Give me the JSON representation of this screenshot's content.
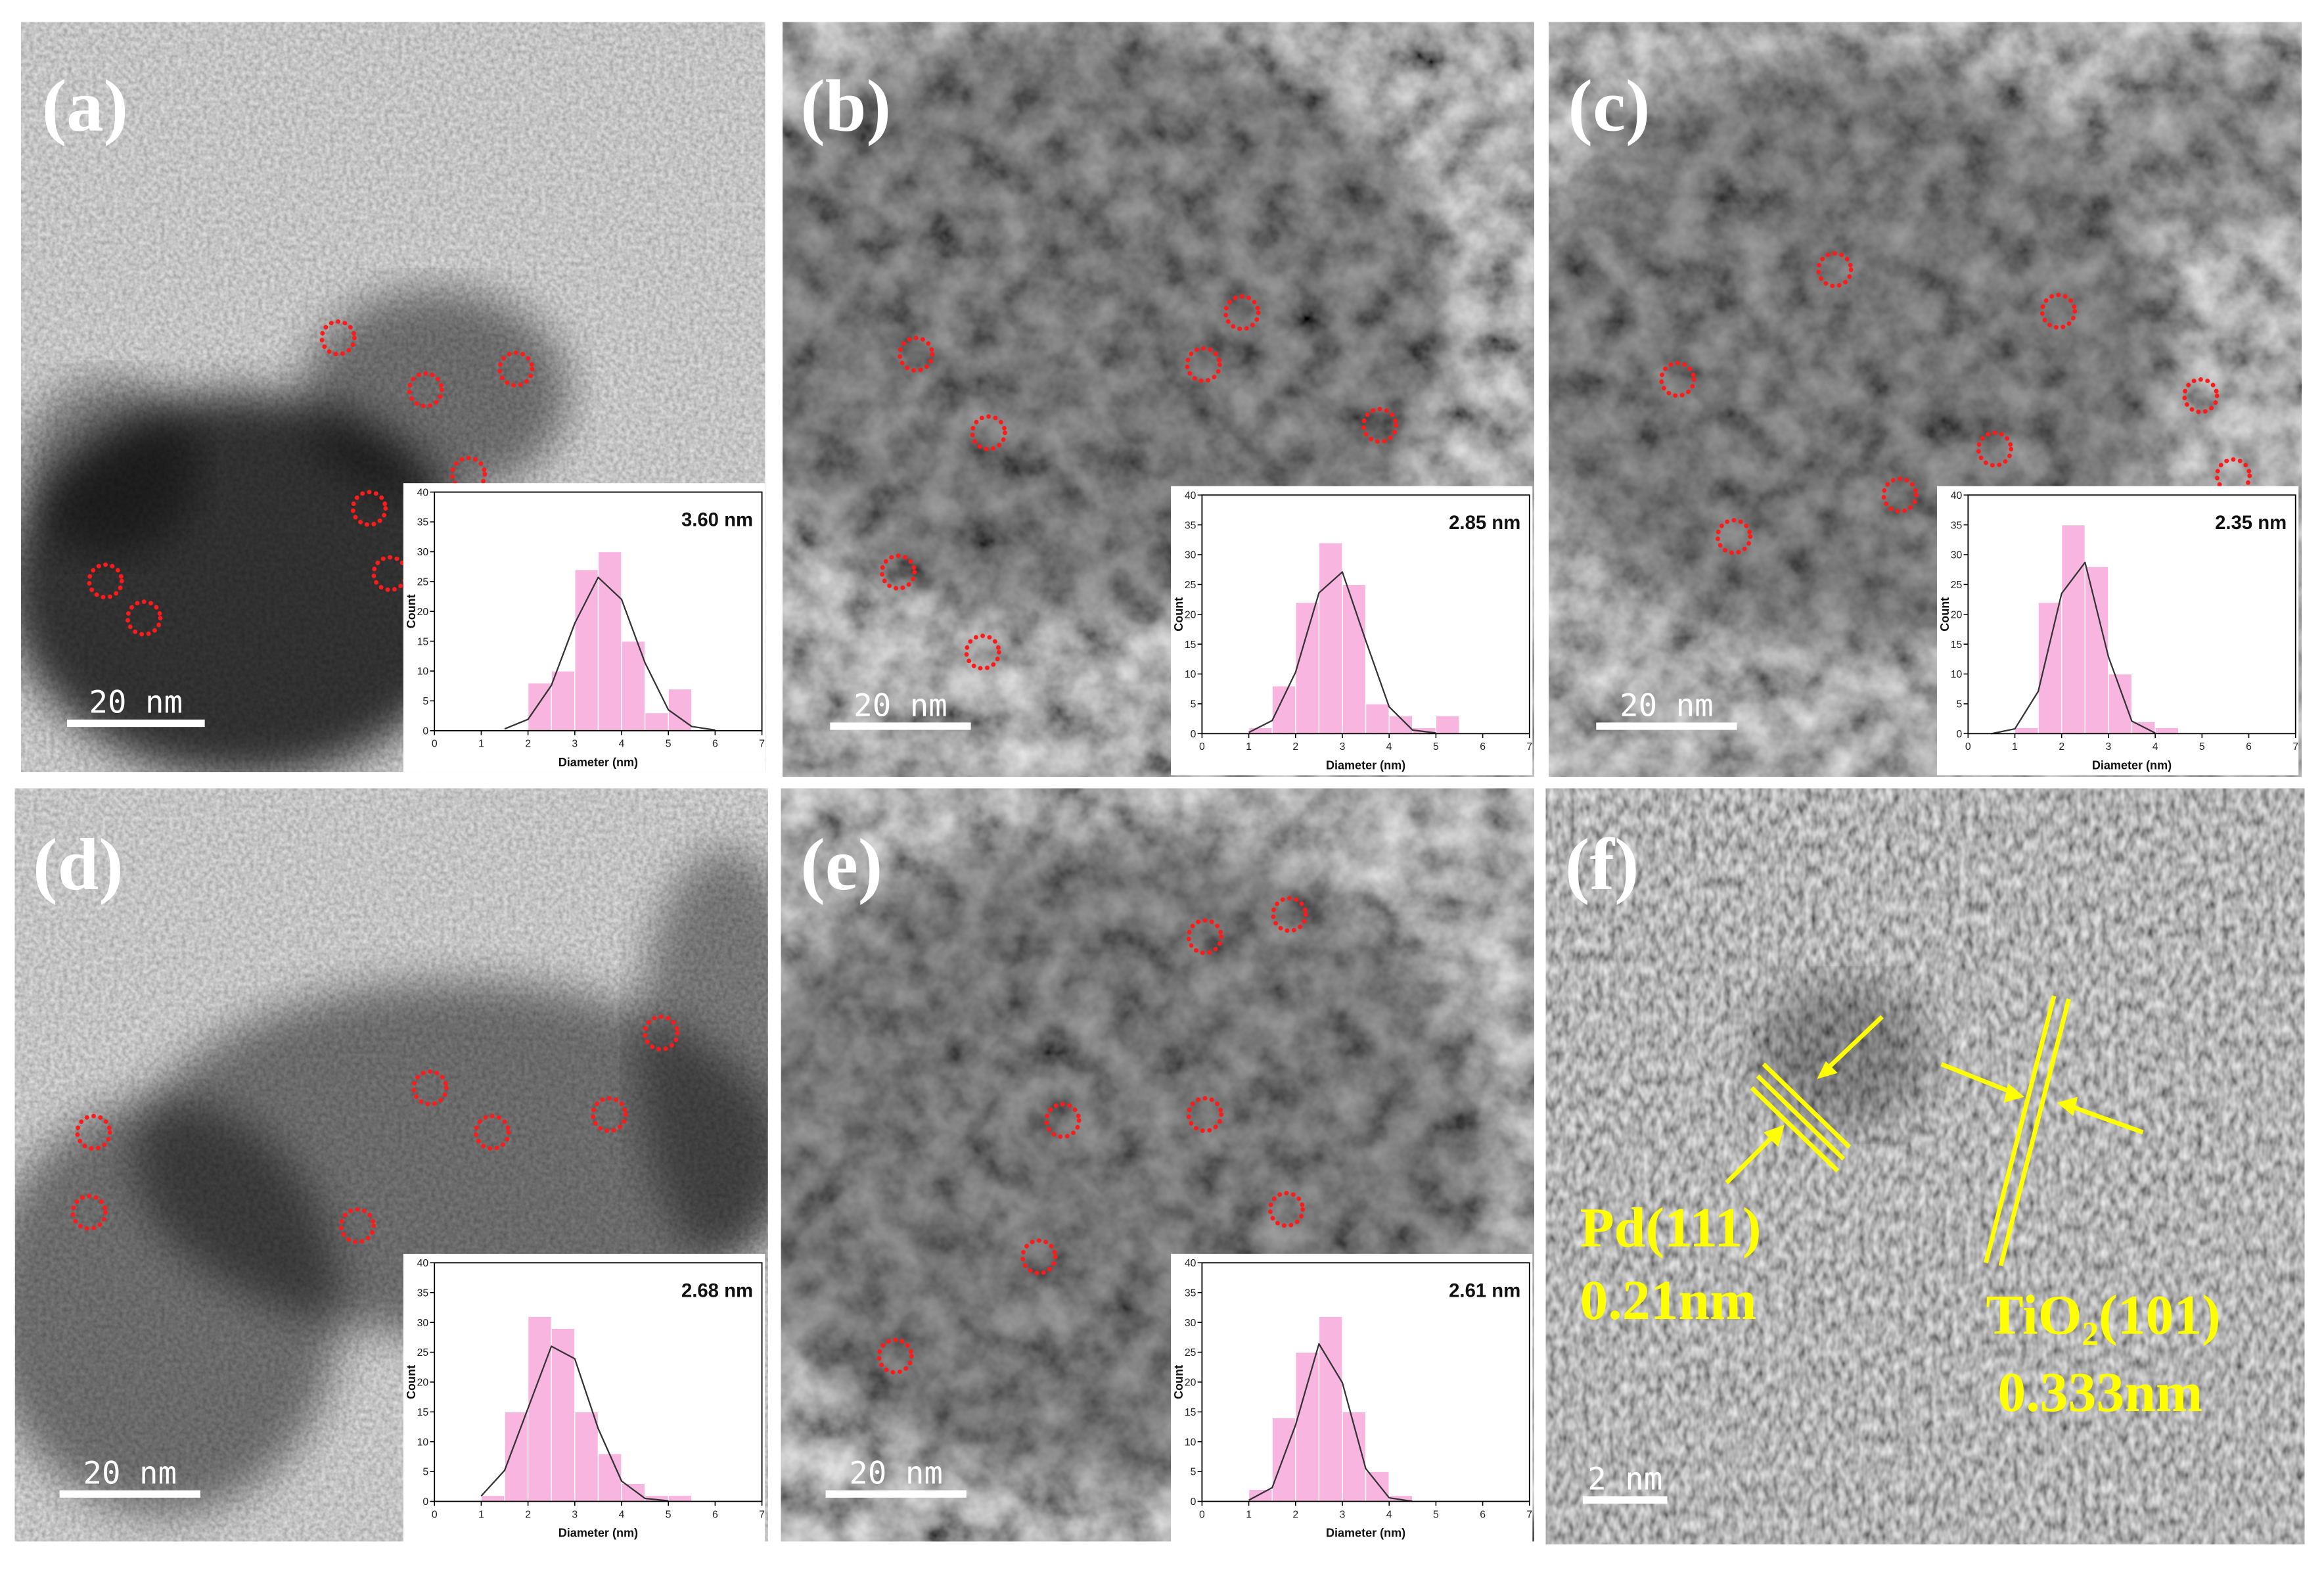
{
  "panels": [
    {
      "label": "(a)",
      "scale_bar": "20 nm"
    },
    {
      "label": "(b)",
      "scale_bar": "20 nm"
    },
    {
      "label": "(c)",
      "scale_bar": "20 nm"
    },
    {
      "label": "(d)",
      "scale_bar": "20 nm"
    },
    {
      "label": "(e)",
      "scale_bar": "20 nm"
    },
    {
      "label": "(f)",
      "scale_bar": "2 nm"
    }
  ],
  "annotations": {
    "pd_plane": "Pd(111)",
    "pd_spacing": "0.21nm",
    "tio2_plane": "TiO₂(101)",
    "tio2_spacing": "0.333nm"
  },
  "chart_data": [
    {
      "type": "histogram",
      "title": "3.60 nm",
      "x_label": "Diameter (nm)",
      "y_label": "Count",
      "color": "#f7b5e0",
      "bins": [
        2,
        2.5,
        3,
        3.5,
        4,
        4.5,
        5,
        5.5
      ],
      "values": [
        8,
        10,
        27,
        30,
        15,
        3,
        7
      ],
      "fit": {
        "color": "#333333",
        "x": [
          1.5,
          2,
          2.5,
          3,
          3.5,
          4,
          4.5,
          5,
          5.5,
          6
        ],
        "values": [
          0.3,
          1.9,
          7.6,
          18,
          25.7,
          22,
          11.4,
          3.5,
          0.7,
          0.1
        ]
      },
      "xlim": [
        0,
        7
      ],
      "xticks": [
        0,
        1,
        2,
        3,
        4,
        5,
        6,
        7
      ],
      "ylim": [
        0,
        40
      ],
      "yticks": [
        0,
        5,
        10,
        15,
        20,
        25,
        30,
        35,
        40
      ]
    },
    {
      "type": "histogram",
      "title": "2.85 nm",
      "x_label": "Diameter (nm)",
      "y_label": "Count",
      "color": "#f7b5e0",
      "bins": [
        1,
        1.5,
        2,
        2.5,
        3,
        3.5,
        4,
        4.5,
        5,
        5.5
      ],
      "values": [
        1,
        8,
        22,
        32,
        25,
        5,
        3,
        1,
        3
      ],
      "fit": {
        "color": "#333333",
        "x": [
          1,
          1.5,
          2,
          2.5,
          3,
          3.5,
          4,
          4.5,
          5
        ],
        "values": [
          0.2,
          2.2,
          10.3,
          23.6,
          27.1,
          15.6,
          4.5,
          0.6,
          0.1
        ]
      },
      "xlim": [
        0,
        7
      ],
      "xticks": [
        0,
        1,
        2,
        3,
        4,
        5,
        6,
        7
      ],
      "ylim": [
        0,
        40
      ],
      "yticks": [
        0,
        5,
        10,
        15,
        20,
        25,
        30,
        35,
        40
      ]
    },
    {
      "type": "histogram",
      "title": "2.35 nm",
      "x_label": "Diameter (nm)",
      "y_label": "Count",
      "color": "#f7b5e0",
      "bins": [
        1,
        1.5,
        2,
        2.5,
        3,
        3.5,
        4,
        4.5
      ],
      "values": [
        1,
        22,
        35,
        28,
        10,
        2,
        1
      ],
      "fit": {
        "color": "#333333",
        "x": [
          0.5,
          1,
          1.5,
          2,
          2.5,
          3,
          3.5,
          4
        ],
        "values": [
          0,
          0.8,
          7.1,
          23.5,
          28.7,
          12.9,
          2.1,
          0.1
        ]
      },
      "xlim": [
        0,
        7
      ],
      "xticks": [
        0,
        1,
        2,
        3,
        4,
        5,
        6,
        7
      ],
      "ylim": [
        0,
        40
      ],
      "yticks": [
        0,
        5,
        10,
        15,
        20,
        25,
        30,
        35,
        40
      ]
    },
    {
      "type": "histogram",
      "title": "2.68 nm",
      "x_label": "Diameter (nm)",
      "y_label": "Count",
      "color": "#f7b5e0",
      "bins": [
        1,
        1.5,
        2,
        2.5,
        3,
        3.5,
        4,
        4.5,
        5,
        5.5
      ],
      "values": [
        1,
        15,
        31,
        29,
        15,
        8,
        3,
        1,
        1
      ],
      "fit": {
        "color": "#333333",
        "x": [
          1,
          1.5,
          2,
          2.5,
          3,
          3.5,
          4,
          4.5,
          5
        ],
        "values": [
          0.9,
          5.2,
          15.6,
          26,
          23.9,
          12.2,
          3.4,
          0.5,
          0.1
        ]
      },
      "xlim": [
        0,
        7
      ],
      "xticks": [
        0,
        1,
        2,
        3,
        4,
        5,
        6,
        7
      ],
      "ylim": [
        0,
        40
      ],
      "yticks": [
        0,
        5,
        10,
        15,
        20,
        25,
        30,
        35,
        40
      ]
    },
    {
      "type": "histogram",
      "title": "2.61 nm",
      "x_label": "Diameter (nm)",
      "y_label": "Count",
      "color": "#f7b5e0",
      "bins": [
        1,
        1.5,
        2,
        2.5,
        3,
        3.5,
        4,
        4.5
      ],
      "values": [
        2,
        14,
        25,
        31,
        15,
        5,
        1
      ],
      "fit": {
        "color": "#333333",
        "x": [
          1,
          1.5,
          2,
          2.5,
          3,
          3.5,
          4,
          4.5
        ],
        "values": [
          0.2,
          2.3,
          12.8,
          26.4,
          19.9,
          5.5,
          0.6,
          0
        ]
      },
      "xlim": [
        0,
        7
      ],
      "xticks": [
        0,
        1,
        2,
        3,
        4,
        5,
        6,
        7
      ],
      "ylim": [
        0,
        40
      ],
      "yticks": [
        0,
        5,
        10,
        15,
        20,
        25,
        30,
        35,
        40
      ]
    }
  ]
}
